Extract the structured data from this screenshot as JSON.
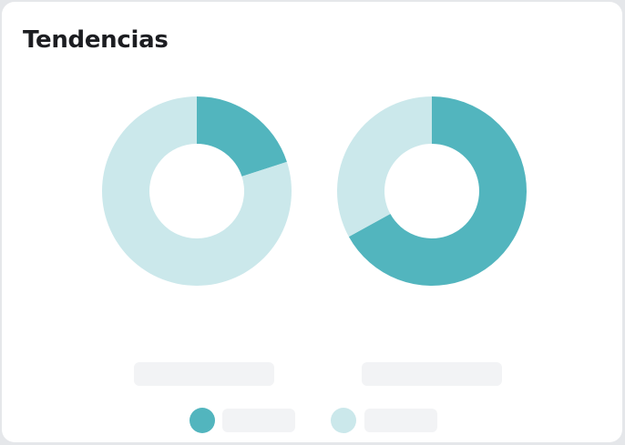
{
  "card": {
    "title": "Tendencias"
  },
  "colors": {
    "primary": "#52b5be",
    "secondary": "#cbe8eb",
    "placeholder": "#f2f3f5"
  },
  "chart_data": [
    {
      "type": "pie",
      "variant": "donut",
      "slices": [
        {
          "color": "#52b5be",
          "value": 0.2
        },
        {
          "color": "#cbe8eb",
          "value": 0.8
        }
      ]
    },
    {
      "type": "pie",
      "variant": "donut",
      "slices": [
        {
          "color": "#52b5be",
          "value": 0.67
        },
        {
          "color": "#cbe8eb",
          "value": 0.33
        }
      ]
    }
  ]
}
